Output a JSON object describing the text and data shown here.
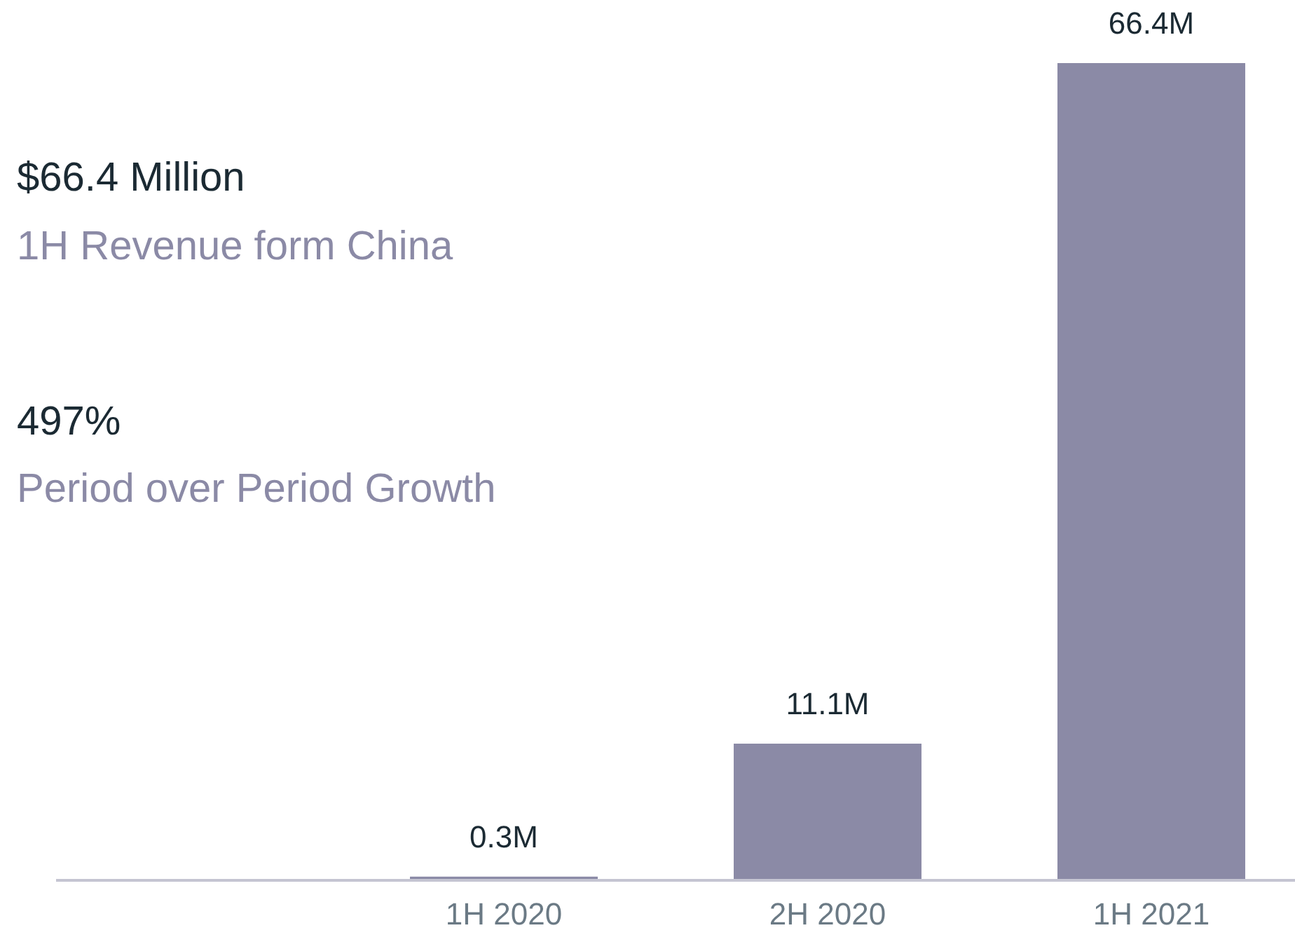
{
  "chart_data": {
    "type": "bar",
    "categories": [
      "1H 2020",
      "2H 2020",
      "1H 2021"
    ],
    "values": [
      0.3,
      11.1,
      66.4
    ],
    "value_labels": [
      "0.3M",
      "11.1M",
      "66.4M"
    ],
    "color": "#8b8aa6",
    "annotations": [
      "$66.4 Million",
      "1H Revenue form China",
      "497%",
      "Period over Period Growth"
    ]
  }
}
